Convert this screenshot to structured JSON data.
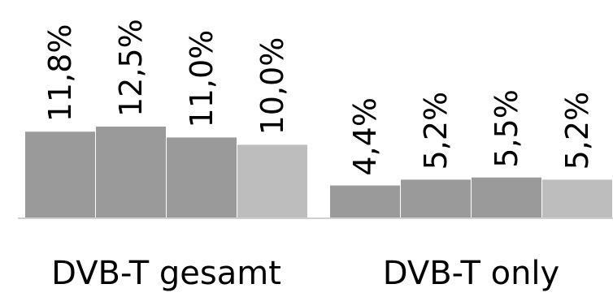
{
  "chart_data": {
    "type": "bar",
    "categories": [
      "DVB-T gesamt",
      "DVB-T only"
    ],
    "series": [
      {
        "values": [
          11.8,
          4.4
        ],
        "labels": [
          "11,8%",
          "4,4%"
        ],
        "color": "#9a9a9a"
      },
      {
        "values": [
          12.5,
          5.2
        ],
        "labels": [
          "12,5%",
          "5,2%"
        ],
        "color": "#9a9a9a"
      },
      {
        "values": [
          11.0,
          5.5
        ],
        "labels": [
          "11,0%",
          "5,5%"
        ],
        "color": "#9a9a9a"
      },
      {
        "values": [
          10.0,
          5.2
        ],
        "labels": [
          "10,0%",
          "5,2%"
        ],
        "color": "#bdbdbd"
      }
    ],
    "ylim": [
      0,
      12.5
    ],
    "grid": false,
    "legend": "none",
    "baseline_color": "#cfcfcf"
  }
}
